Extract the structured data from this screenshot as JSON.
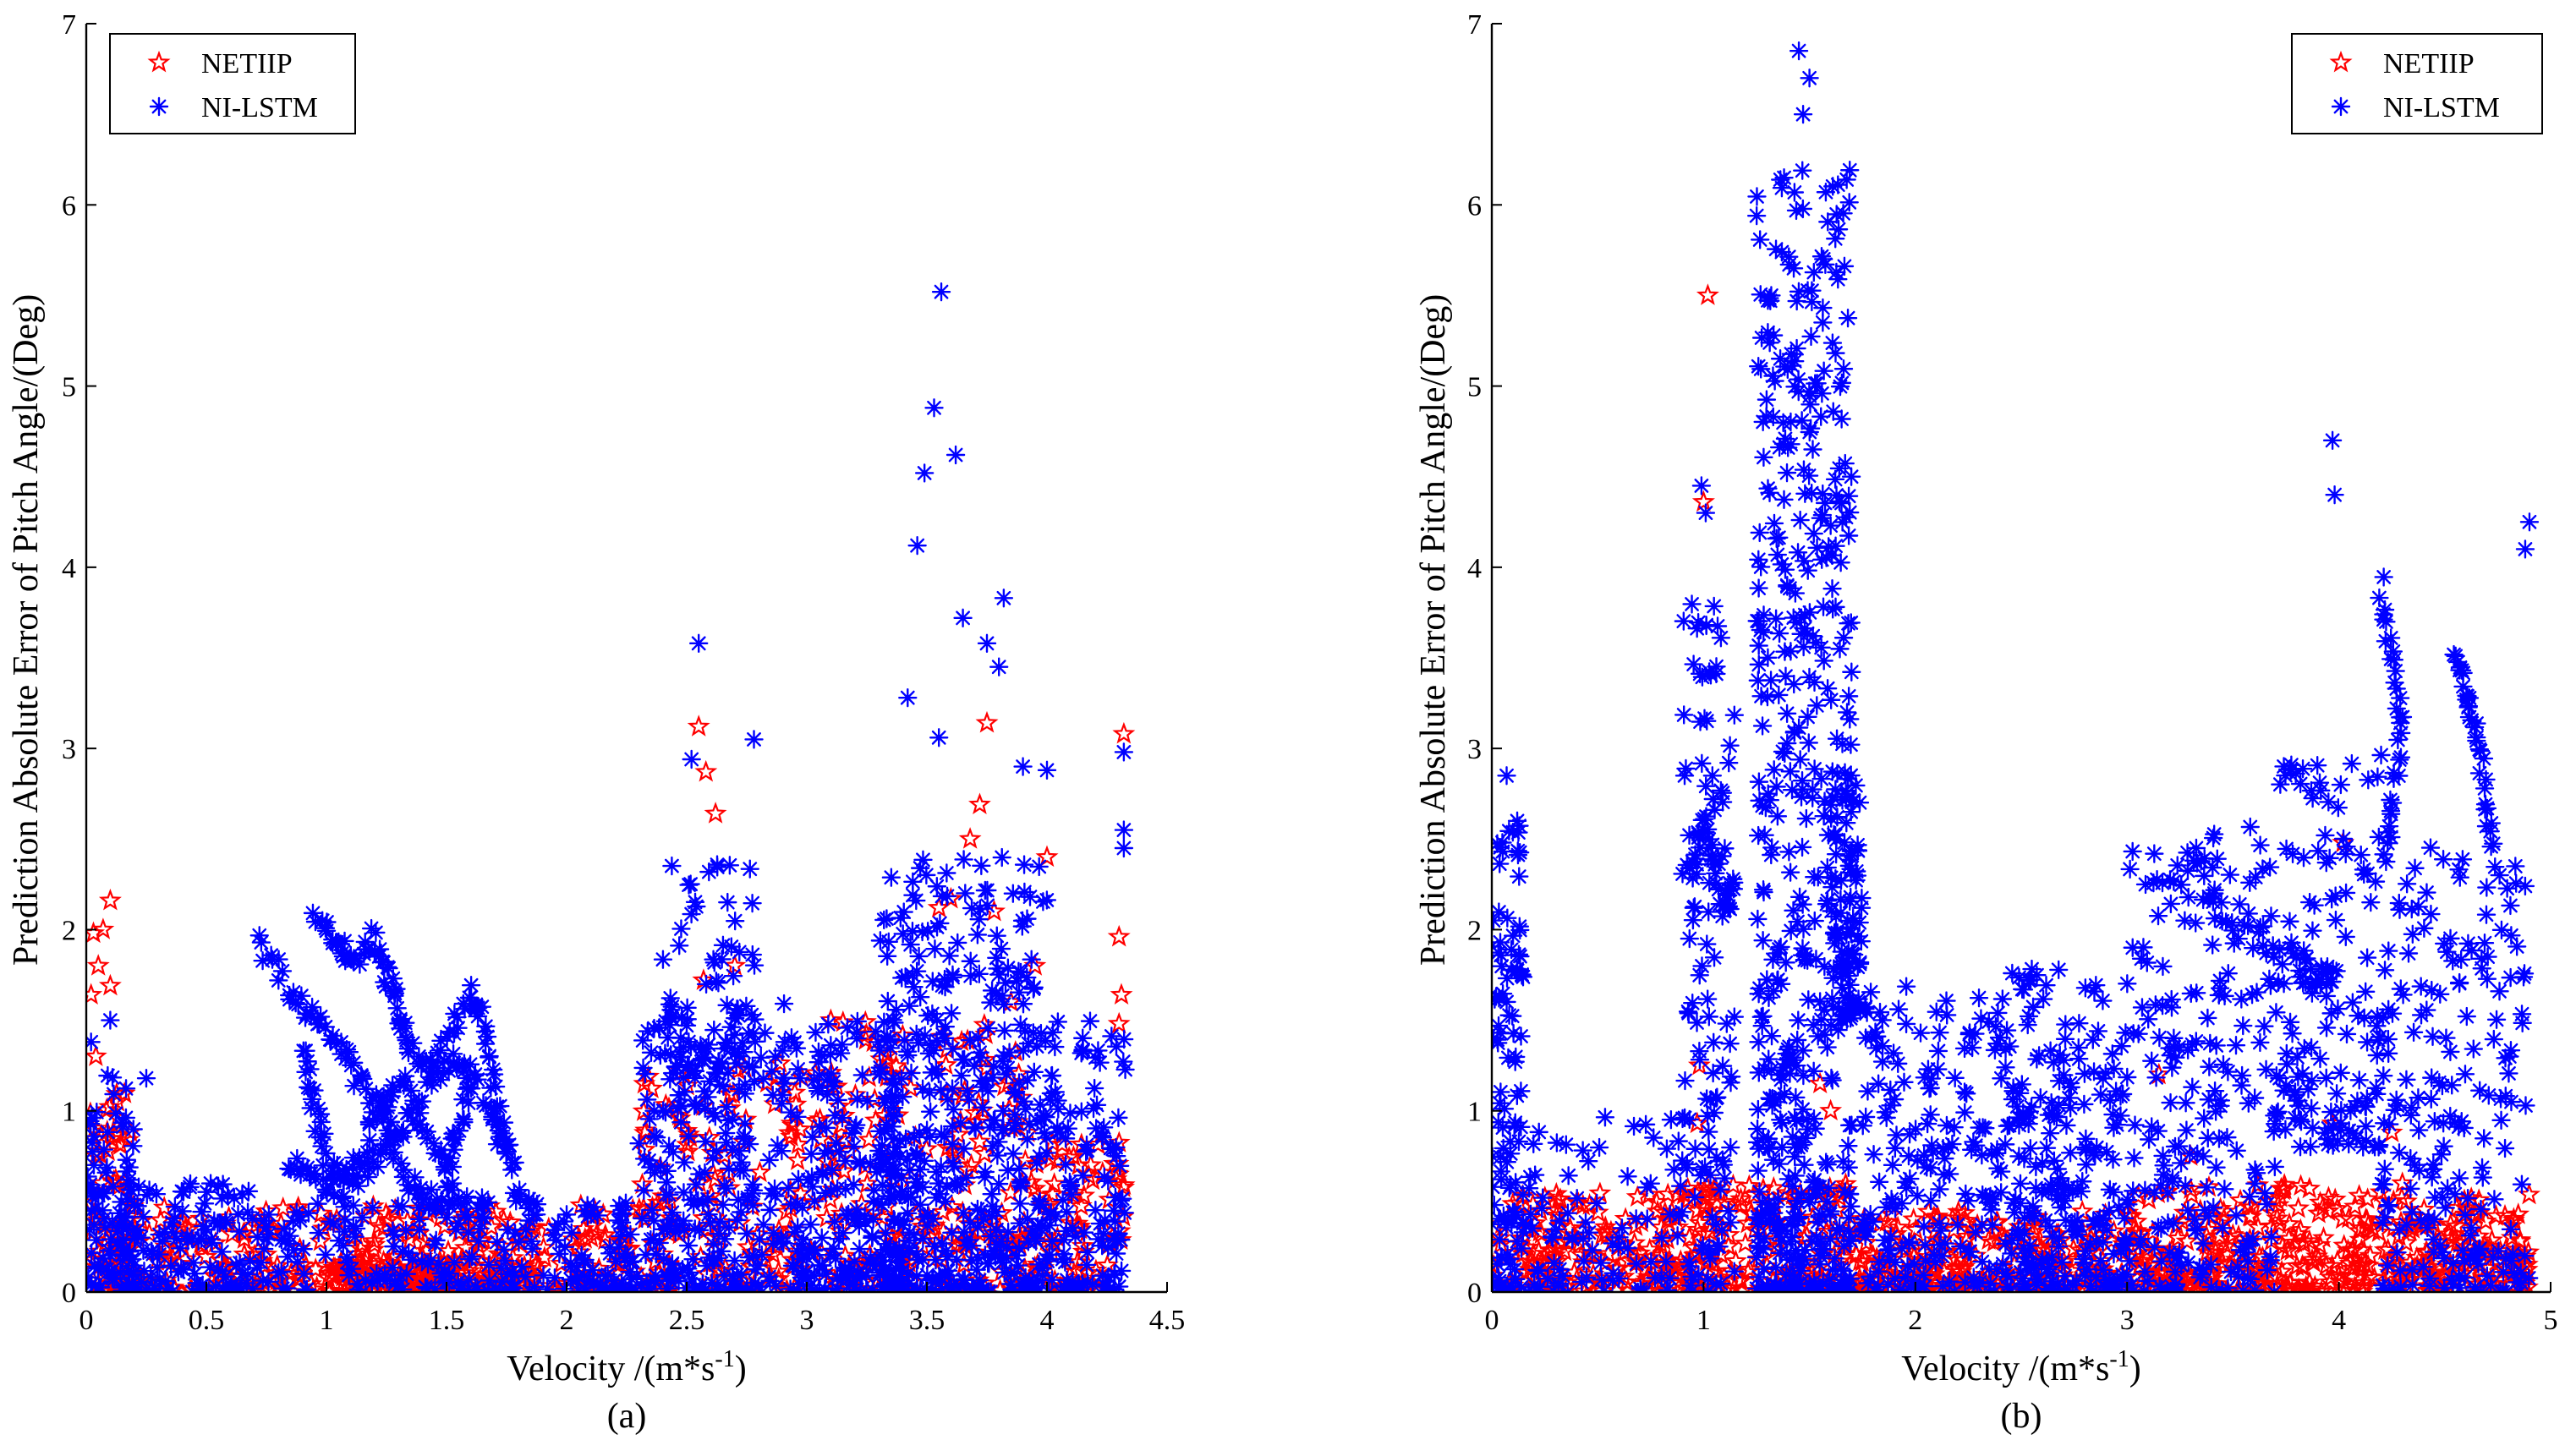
{
  "colors": {
    "netiip": "#ff0000",
    "nilstm": "#0000ff",
    "axis": "#000000",
    "background": "#ffffff"
  },
  "chart_data": [
    {
      "type": "scatter",
      "caption": "(a)",
      "xlabel": "Velocity /(m*s",
      "xlabel_sup": "-1",
      "xlabel_close": ")",
      "ylabel": "Prediction Absolute Error of Pitch Angle/(Deg)",
      "xlim": [
        0,
        4.5
      ],
      "ylim": [
        0,
        7
      ],
      "xticks": [
        "0",
        "0.5",
        "1",
        "1.5",
        "2",
        "2.5",
        "3",
        "3.5",
        "4",
        "4.5"
      ],
      "yticks": [
        "0",
        "1",
        "2",
        "3",
        "4",
        "5",
        "6",
        "7"
      ],
      "legend_position": "top-left",
      "series": [
        {
          "name": "NETIIP",
          "marker": "pentagram",
          "color": "#ff0000",
          "highlights": [
            [
              0.02,
              1.64
            ],
            [
              0.03,
              1.98
            ],
            [
              0.05,
              1.8
            ],
            [
              0.07,
              2.0
            ],
            [
              0.1,
              2.16
            ],
            [
              0.1,
              1.69
            ],
            [
              0.13,
              1.05
            ],
            [
              0.04,
              1.3
            ],
            [
              2.55,
              3.12
            ],
            [
              2.58,
              2.87
            ],
            [
              2.62,
              2.64
            ],
            [
              2.57,
              1.72
            ],
            [
              2.7,
              1.8
            ],
            [
              3.75,
              3.14
            ],
            [
              3.72,
              2.69
            ],
            [
              3.68,
              2.5
            ],
            [
              3.6,
              2.17
            ],
            [
              3.55,
              2.12
            ],
            [
              3.78,
              2.1
            ],
            [
              4.32,
              3.08
            ],
            [
              4.3,
              1.96
            ],
            [
              4.31,
              1.64
            ],
            [
              4.3,
              1.48
            ],
            [
              3.1,
              1.5
            ],
            [
              2.95,
              1.1
            ],
            [
              3.95,
              1.8
            ],
            [
              4.0,
              2.4
            ],
            [
              3.85,
              1.6
            ]
          ],
          "clusters": [
            {
              "x": [
                0,
                0.2
              ],
              "y": [
                0,
                1.1
              ],
              "n": 70
            },
            {
              "x": [
                0.1,
                2.3
              ],
              "y": [
                0,
                0.48
              ],
              "n": 320
            },
            {
              "x": [
                1.0,
                1.8
              ],
              "y": [
                0,
                0.2
              ],
              "n": 120
            },
            {
              "x": [
                2.3,
                3.0
              ],
              "y": [
                0,
                1.3
              ],
              "n": 140
            },
            {
              "x": [
                3.0,
                3.9
              ],
              "y": [
                0,
                1.5
              ],
              "n": 200
            },
            {
              "x": [
                3.9,
                4.33
              ],
              "y": [
                0,
                0.9
              ],
              "n": 90
            }
          ]
        },
        {
          "name": "NI-LSTM",
          "marker": "asterisk",
          "color": "#0000ff",
          "highlights": [
            [
              3.56,
              5.52
            ],
            [
              3.53,
              4.88
            ],
            [
              3.62,
              4.62
            ],
            [
              3.49,
              4.52
            ],
            [
              3.46,
              4.12
            ],
            [
              2.55,
              3.58
            ],
            [
              3.82,
              3.83
            ],
            [
              3.65,
              3.72
            ],
            [
              3.75,
              3.58
            ],
            [
              3.8,
              3.45
            ],
            [
              2.52,
              2.94
            ],
            [
              2.78,
              3.05
            ],
            [
              4.32,
              2.98
            ],
            [
              4.32,
              2.55
            ],
            [
              4.32,
              2.45
            ],
            [
              3.42,
              3.28
            ],
            [
              3.55,
              3.06
            ],
            [
              3.9,
              2.9
            ],
            [
              4.0,
              2.88
            ],
            [
              0.1,
              1.5
            ],
            [
              0.02,
              1.38
            ],
            [
              0.25,
              1.18
            ]
          ],
          "paths": [
            [
              [
                0.72,
                1.95
              ],
              [
                0.85,
                1.65
              ],
              [
                0.95,
                1.5
              ],
              [
                1.05,
                1.35
              ],
              [
                1.15,
                1.15
              ],
              [
                1.25,
                0.95
              ],
              [
                1.3,
                0.85
              ],
              [
                1.4,
                1.1
              ],
              [
                1.5,
                1.4
              ],
              [
                1.6,
                1.65
              ],
              [
                1.65,
                1.5
              ],
              [
                1.7,
                1.1
              ],
              [
                1.75,
                0.8
              ],
              [
                1.8,
                0.55
              ],
              [
                1.9,
                0.4
              ]
            ],
            [
              [
                0.95,
                2.08
              ],
              [
                1.05,
                1.95
              ],
              [
                1.1,
                1.8
              ],
              [
                1.2,
                1.95
              ],
              [
                1.25,
                1.75
              ],
              [
                1.3,
                1.55
              ],
              [
                1.35,
                1.35
              ],
              [
                1.45,
                1.2
              ],
              [
                1.55,
                1.3
              ],
              [
                1.65,
                1.1
              ],
              [
                1.75,
                0.75
              ]
            ],
            [
              [
                0.9,
                1.35
              ],
              [
                0.95,
                1.0
              ],
              [
                1.0,
                0.75
              ],
              [
                1.1,
                0.65
              ],
              [
                1.2,
                0.95
              ],
              [
                1.3,
                1.2
              ],
              [
                1.4,
                0.9
              ],
              [
                1.5,
                0.7
              ],
              [
                1.55,
                0.9
              ],
              [
                1.6,
                1.2
              ]
            ],
            [
              [
                0.85,
                0.7
              ],
              [
                0.95,
                0.65
              ],
              [
                1.05,
                0.55
              ],
              [
                1.15,
                0.65
              ],
              [
                1.25,
                0.8
              ],
              [
                1.35,
                0.6
              ],
              [
                1.45,
                0.5
              ],
              [
                1.55,
                0.55
              ],
              [
                1.7,
                0.45
              ]
            ]
          ],
          "clusters": [
            {
              "x": [
                0,
                0.2
              ],
              "y": [
                0,
                1.2
              ],
              "n": 90
            },
            {
              "x": [
                0.15,
                0.7
              ],
              "y": [
                0,
                0.6
              ],
              "n": 120
            },
            {
              "x": [
                0.7,
                2.3
              ],
              "y": [
                0,
                0.5
              ],
              "n": 220
            },
            {
              "x": [
                2.3,
                3.0
              ],
              "y": [
                0,
                1.6
              ],
              "n": 280
            },
            {
              "x": [
                2.4,
                2.8
              ],
              "y": [
                1.2,
                2.4
              ],
              "n": 60
            },
            {
              "x": [
                3.0,
                3.4
              ],
              "y": [
                0,
                1.5
              ],
              "n": 160
            },
            {
              "x": [
                3.3,
                4.0
              ],
              "y": [
                0,
                2.4
              ],
              "n": 420
            },
            {
              "x": [
                4.0,
                4.33
              ],
              "y": [
                0,
                1.5
              ],
              "n": 120
            }
          ]
        }
      ]
    },
    {
      "type": "scatter",
      "caption": "(b)",
      "xlabel": "Velocity /(m*s",
      "xlabel_sup": "-1",
      "xlabel_close": ")",
      "ylabel": "Prediction Absolute Error of Pitch Angle/(Deg)",
      "xlim": [
        0,
        5
      ],
      "ylim": [
        0,
        7
      ],
      "xticks": [
        "0",
        "1",
        "2",
        "3",
        "4",
        "5"
      ],
      "yticks": [
        "0",
        "1",
        "2",
        "3",
        "4",
        "5",
        "6",
        "7"
      ],
      "legend_position": "top-right",
      "series": [
        {
          "name": "NETIIP",
          "marker": "pentagram",
          "color": "#ff0000",
          "highlights": [
            [
              1.02,
              5.5
            ],
            [
              1.0,
              4.36
            ],
            [
              0.98,
              1.25
            ],
            [
              0.97,
              0.93
            ],
            [
              4.02,
              2.48
            ],
            [
              3.97,
              0.93
            ],
            [
              4.25,
              0.88
            ],
            [
              4.3,
              0.6
            ],
            [
              1.55,
              1.15
            ],
            [
              1.6,
              1.0
            ],
            [
              3.15,
              1.2
            ],
            [
              3.3,
              0.75
            ]
          ],
          "clusters": [
            {
              "x": [
                0,
                0.9
              ],
              "y": [
                0,
                0.55
              ],
              "n": 160
            },
            {
              "x": [
                0.9,
                1.8
              ],
              "y": [
                0,
                0.6
              ],
              "n": 180
            },
            {
              "x": [
                1.8,
                3.0
              ],
              "y": [
                0,
                0.45
              ],
              "n": 220
            },
            {
              "x": [
                3.0,
                3.9
              ],
              "y": [
                0,
                0.6
              ],
              "n": 200
            },
            {
              "x": [
                3.9,
                4.9
              ],
              "y": [
                0,
                0.55
              ],
              "n": 220
            }
          ]
        },
        {
          "name": "NI-LSTM",
          "marker": "asterisk",
          "color": "#0000ff",
          "highlights": [
            [
              1.45,
              6.85
            ],
            [
              1.5,
              6.7
            ],
            [
              1.47,
              6.5
            ],
            [
              1.38,
              6.15
            ],
            [
              0.99,
              4.45
            ],
            [
              1.01,
              4.3
            ],
            [
              3.97,
              4.7
            ],
            [
              3.98,
              4.4
            ],
            [
              4.9,
              4.25
            ],
            [
              4.88,
              4.1
            ],
            [
              0.07,
              2.85
            ],
            [
              0.12,
              2.6
            ]
          ],
          "paths": [
            [
              [
                0.93,
                2.3
              ],
              [
                1.0,
                2.6
              ],
              [
                1.05,
                2.4
              ],
              [
                1.1,
                2.1
              ],
              [
                1.15,
                2.3
              ]
            ],
            [
              [
                4.2,
                3.9
              ],
              [
                4.25,
                3.5
              ],
              [
                4.3,
                3.1
              ],
              [
                4.25,
                2.7
              ],
              [
                4.22,
                2.4
              ]
            ],
            [
              [
                4.55,
                3.5
              ],
              [
                4.6,
                3.3
              ],
              [
                4.65,
                3.1
              ],
              [
                4.7,
                2.7
              ],
              [
                4.75,
                2.3
              ]
            ],
            [
              [
                3.3,
                2.4
              ],
              [
                3.5,
                2.0
              ],
              [
                3.7,
                1.9
              ],
              [
                3.9,
                1.75
              ],
              [
                4.0,
                1.72
              ]
            ]
          ],
          "clusters": [
            {
              "x": [
                0,
                0.15
              ],
              "y": [
                0,
                2.6
              ],
              "n": 110
            },
            {
              "x": [
                0.15,
                0.9
              ],
              "y": [
                0,
                1.0
              ],
              "n": 90
            },
            {
              "x": [
                0.9,
                1.15
              ],
              "y": [
                0,
                3.8
              ],
              "n": 120
            },
            {
              "x": [
                1.25,
                1.7
              ],
              "y": [
                0,
                6.2
              ],
              "n": 520
            },
            {
              "x": [
                1.6,
                1.75
              ],
              "y": [
                1.5,
                2.9
              ],
              "n": 80
            },
            {
              "x": [
                1.75,
                2.4
              ],
              "y": [
                0,
                1.8
              ],
              "n": 180
            },
            {
              "x": [
                2.4,
                3.0
              ],
              "y": [
                0,
                1.8
              ],
              "n": 240
            },
            {
              "x": [
                3.0,
                3.7
              ],
              "y": [
                0,
                2.6
              ],
              "n": 220
            },
            {
              "x": [
                3.7,
                4.2
              ],
              "y": [
                0.8,
                3.0
              ],
              "n": 140
            },
            {
              "x": [
                4.2,
                4.9
              ],
              "y": [
                0,
                2.5
              ],
              "n": 200
            }
          ]
        }
      ]
    }
  ]
}
